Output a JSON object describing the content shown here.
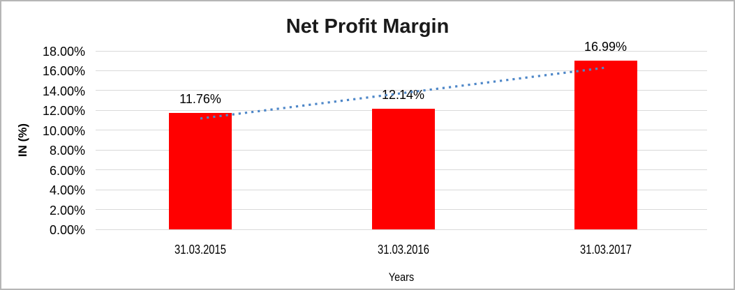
{
  "chart_data": {
    "type": "bar",
    "title": "Net Profit Margin",
    "categories": [
      "31.03.2015",
      "31.03.2016",
      "31.03.2017"
    ],
    "values": [
      11.76,
      12.14,
      16.99
    ],
    "value_labels": [
      "11.76%",
      "12.14%",
      "16.99%"
    ],
    "xlabel": "Years",
    "ylabel": "IN (%)",
    "ylim": [
      0,
      18
    ],
    "ytick_step": 2,
    "ytick_labels": [
      "0.00%",
      "2.00%",
      "4.00%",
      "6.00%",
      "8.00%",
      "10.00%",
      "12.00%",
      "14.00%",
      "16.00%",
      "18.00%"
    ],
    "grid": true,
    "legend": "none",
    "bar_color": "#ff0000",
    "gridline_color": "#d9d9d9",
    "text_color": "#000000",
    "frame_border_color": "#b6b6b6",
    "trendline": {
      "type": "linear",
      "style": "dotted",
      "color": "#4e87c8",
      "start_value": 11.18,
      "end_value": 16.31,
      "from_category_index": 0,
      "to_category_index": 2
    }
  }
}
